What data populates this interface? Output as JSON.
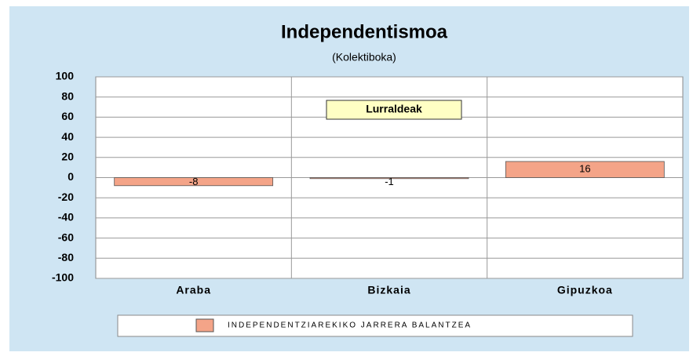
{
  "chart_data": {
    "type": "bar",
    "title": "Independentismoa",
    "subtitle": "(Kolektiboka)",
    "annotation": "Lurraldeak",
    "categories": [
      "Araba",
      "Bizkaia",
      "Gipuzkoa"
    ],
    "series": [
      {
        "name": "INDEPENDENTZIAREKIKO JARRERA BALANTZEA",
        "color": "#f4a488",
        "values": [
          -8,
          -1,
          16
        ]
      }
    ],
    "ylim": [
      -100,
      100
    ],
    "yticks": [
      -100,
      -80,
      -60,
      -40,
      -20,
      0,
      20,
      40,
      60,
      80,
      100
    ],
    "grid": true
  }
}
